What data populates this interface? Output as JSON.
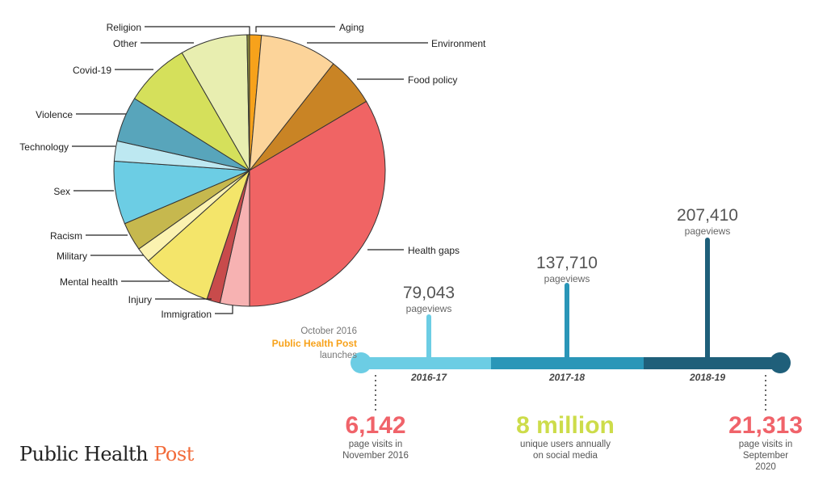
{
  "chart_data": [
    {
      "type": "pie",
      "title": "",
      "start": "top",
      "direction": "clockwise",
      "unit": "percent (estimated)",
      "slices": [
        {
          "label": "Aging",
          "value": 1.4,
          "color": "#f7a21b"
        },
        {
          "label": "Environment",
          "value": 9.2,
          "color": "#fcd49a"
        },
        {
          "label": "Food policy",
          "value": 5.9,
          "color": "#c98425"
        },
        {
          "label": "Health gaps",
          "value": 33.5,
          "color": "#f06464"
        },
        {
          "label": "Immigration",
          "value": 3.5,
          "color": "#f7b2b2"
        },
        {
          "label": "Injury",
          "value": 1.6,
          "color": "#c84b4b"
        },
        {
          "label": "Mental health",
          "value": 8.3,
          "color": "#f4e56a"
        },
        {
          "label": "Military",
          "value": 1.8,
          "color": "#fbf2b0"
        },
        {
          "label": "Racism",
          "value": 3.4,
          "color": "#c6b84e"
        },
        {
          "label": "Sex",
          "value": 7.5,
          "color": "#6ccde4"
        },
        {
          "label": "Technology",
          "value": 2.4,
          "color": "#bde8f1"
        },
        {
          "label": "Violence",
          "value": 5.4,
          "color": "#58a5bb"
        },
        {
          "label": "Covid-19",
          "value": 7.8,
          "color": "#d5e05b"
        },
        {
          "label": "Other",
          "value": 8.0,
          "color": "#e8eeb0"
        },
        {
          "label": "Religion",
          "value": 0.3,
          "color": "#8a8a3a"
        }
      ]
    },
    {
      "type": "timeline",
      "periods": [
        {
          "label": "2016-17",
          "value": 79043,
          "value_text": "79,043",
          "unit": "pageviews",
          "color": "#6ccde4"
        },
        {
          "label": "2017-18",
          "value": 137710,
          "value_text": "137,710",
          "unit": "pageviews",
          "color": "#2a96b8"
        },
        {
          "label": "2018-19",
          "value": 207410,
          "value_text": "207,410",
          "unit": "pageviews",
          "color": "#1f5f7a"
        }
      ]
    }
  ],
  "launch": {
    "line1": "October 2016",
    "brand": "Public Health Post",
    "line3": "launches",
    "brand_color": "#f7a21b"
  },
  "stats": [
    {
      "value": "6,142",
      "line1": "page visits in",
      "line2": "November 2016",
      "color": "#f0636a"
    },
    {
      "value": "8 million",
      "line1": "unique users annually",
      "line2": "on social media",
      "color": "#cddc4a"
    },
    {
      "value": "21,313",
      "line1": "page visits in",
      "line2": "September 2020",
      "color": "#f0636a"
    }
  ],
  "logo": {
    "part1": "Public Health ",
    "part2": "Post",
    "accent": "#f26b3a"
  }
}
